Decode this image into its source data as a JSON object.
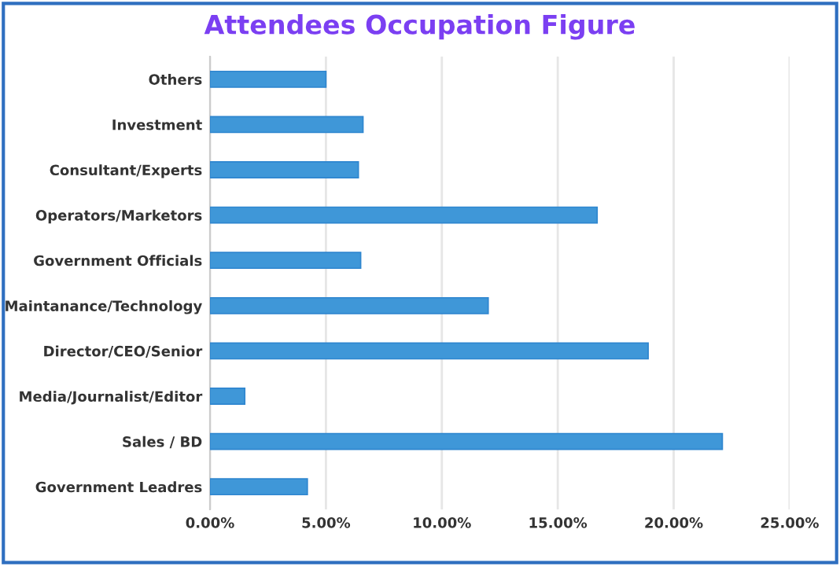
{
  "chart_data": {
    "type": "bar",
    "title": "Attendees Occupation Figure",
    "orientation": "horizontal",
    "categories": [
      "Others",
      "Investment",
      "Consultant/Experts",
      "Operators/Marketors",
      "Government Officials",
      "Maintanance/Technology",
      "Director/CEO/Senior",
      "Media/Journalist/Editor",
      "Sales / BD",
      "Government Leadres"
    ],
    "values": [
      5.0,
      6.6,
      6.4,
      16.7,
      6.5,
      12.0,
      18.9,
      1.5,
      22.1,
      4.2
    ],
    "color": "#3f97d8",
    "xlim": [
      0,
      25
    ],
    "xticks": [
      {
        "value": 0,
        "label": "0.00%"
      },
      {
        "value": 5,
        "label": "5.00%"
      },
      {
        "value": 10,
        "label": "10.00%"
      },
      {
        "value": 15,
        "label": "15.00%"
      },
      {
        "value": 20,
        "label": "20.00%"
      },
      {
        "value": 25,
        "label": "25.00%"
      }
    ],
    "grid": "x"
  }
}
